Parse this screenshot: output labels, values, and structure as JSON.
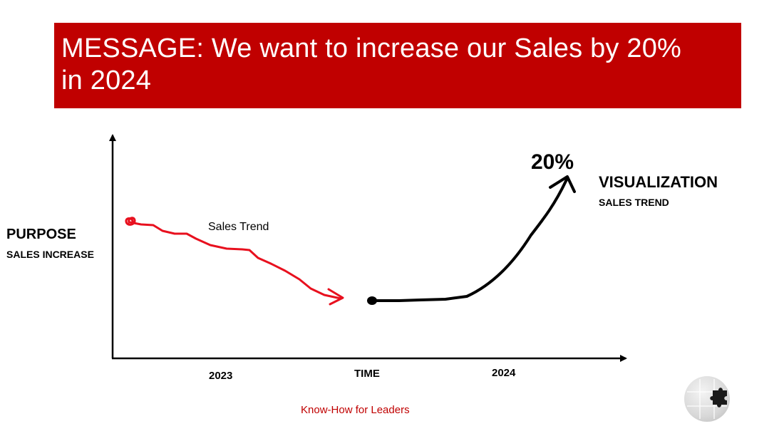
{
  "banner": {
    "title_line1": "MESSAGE: We want to increase our Sales by 20%",
    "title_line2": "in 2024"
  },
  "purpose": {
    "title": "PURPOSE",
    "subtitle": "SALES INCREASE"
  },
  "visualization": {
    "title": "VISUALIZATION",
    "subtitle": "SALES TREND"
  },
  "chart": {
    "trend_label": "Sales Trend",
    "increase_label": "20%",
    "x_labels": {
      "left": "2023",
      "center": "TIME",
      "right": "2024"
    }
  },
  "footer": {
    "text": "Know-How for Leaders"
  },
  "logo": {
    "icon": "puzzle-globe-icon"
  },
  "colors": {
    "accent": "#c00000",
    "trend_red": "#e8101e",
    "forecast": "#000000"
  }
}
